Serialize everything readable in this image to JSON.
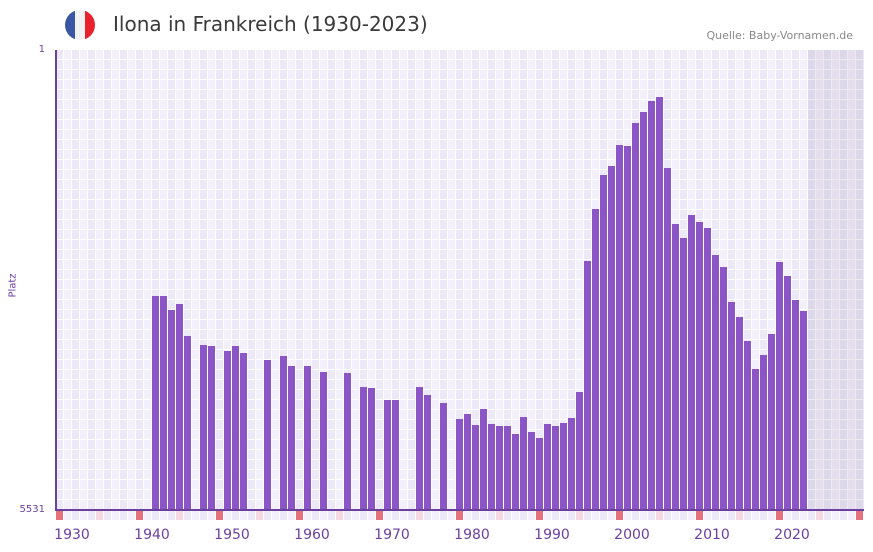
{
  "header": {
    "title": "Ilona in Frankreich (1930-2023)",
    "source": "Quelle: Baby-Vornamen.de",
    "flag_colors": [
      "#3a55a4",
      "#f2f2f2",
      "#e8212c"
    ]
  },
  "chart_data": {
    "type": "bar",
    "title": "Ilona in Frankreich (1930-2023)",
    "xlabel": "",
    "ylabel": "Platz",
    "ylim": [
      5531,
      1
    ],
    "y_ticks": [
      "1",
      "5531"
    ],
    "x_ticks": [
      "1930",
      "1940",
      "1950",
      "1960",
      "1970",
      "1980",
      "1990",
      "2000",
      "2010",
      "2020"
    ],
    "bar_color": "#8c55c6",
    "start_year": 1940,
    "values": [
      2958,
      2958,
      3126,
      3054,
      3439,
      null,
      3547,
      3559,
      null,
      3619,
      3559,
      3643,
      null,
      null,
      3728,
      null,
      3680,
      3800,
      null,
      3800,
      null,
      3872,
      null,
      null,
      3884,
      null,
      4052,
      4064,
      null,
      4209,
      4209,
      null,
      null,
      4052,
      4148,
      null,
      4245,
      null,
      4437,
      4377,
      4509,
      4317,
      4497,
      4521,
      4521,
      4617,
      4413,
      4593,
      4665,
      4497,
      4521,
      4485,
      4425,
      4112,
      2538,
      1912,
      1504,
      1395,
      1143,
      1155,
      879,
      746,
      614,
      566,
      1420,
      2093,
      2261,
      1985,
      2069,
      2141,
      2465,
      2610,
      3030,
      3211,
      3499,
      3836,
      3668,
      3415,
      2550,
      2718,
      3006,
      3139
    ]
  }
}
